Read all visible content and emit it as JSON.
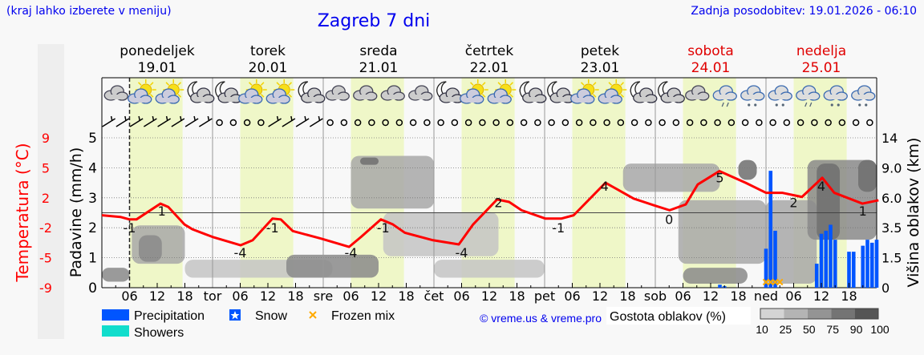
{
  "header": {
    "hint": "(kraj lahko izberete v meniju)",
    "title": "Zagreb 7 dni",
    "updated": "Zadnja posodobitev: 19.01.2026 - 06:10"
  },
  "days": [
    {
      "name": "ponedeljek",
      "date": "19.01",
      "abbr": "",
      "weekend": false
    },
    {
      "name": "torek",
      "date": "20.01",
      "abbr": "tor",
      "weekend": false
    },
    {
      "name": "sreda",
      "date": "21.01",
      "abbr": "sre",
      "weekend": false
    },
    {
      "name": "četrtek",
      "date": "22.01",
      "abbr": "čet",
      "weekend": false
    },
    {
      "name": "petek",
      "date": "23.01",
      "abbr": "pet",
      "weekend": false
    },
    {
      "name": "sobota",
      "date": "24.01",
      "abbr": "sob",
      "weekend": true
    },
    {
      "name": "nedelja",
      "date": "25.01",
      "abbr": "ned",
      "weekend": true
    }
  ],
  "colors": {
    "weekend": "#e00000",
    "temperature": "#ff0000",
    "precipitation": "#0055ff",
    "showers": "#11ddcc",
    "frozen_mix": "#ffaa00",
    "daylight": "#eff7c8",
    "link": "#0000ee"
  },
  "chart_data": {
    "type": "meteogram",
    "x_hour_ticks": [
      "06",
      "12",
      "18"
    ],
    "current_time_hour": 6,
    "left_axis_temperature": {
      "label": "Temperatura (°C)",
      "ticks": [
        "9",
        "5",
        "2",
        "-2",
        "-5",
        "-9"
      ]
    },
    "left_axis_precip": {
      "label": "Padavine (mm/h)",
      "ticks": [
        "0",
        "1",
        "2",
        "3",
        "4",
        "5"
      ],
      "ylim": [
        0,
        5
      ]
    },
    "right_axis_clouds": {
      "label": "Višina oblakov (km)",
      "ticks": [
        "0",
        "1.5",
        "3.5",
        "6.0",
        "9.0",
        "14"
      ]
    },
    "temperature_series": [
      [
        0,
        -0.3
      ],
      [
        4,
        -0.5
      ],
      [
        6,
        -0.8
      ],
      [
        7.5,
        -0.8
      ],
      [
        12.7,
        1.1
      ],
      [
        14.4,
        0.7
      ],
      [
        17.9,
        -1.4
      ],
      [
        19.7,
        -2.0
      ],
      [
        24,
        -2.9
      ],
      [
        30.1,
        -3.9
      ],
      [
        32.7,
        -3.3
      ],
      [
        37,
        -0.7
      ],
      [
        38.8,
        -0.8
      ],
      [
        41.4,
        -2.2
      ],
      [
        47.5,
        -3.1
      ],
      [
        53.6,
        -4.1
      ],
      [
        56.2,
        -2.9
      ],
      [
        60.5,
        -0.8
      ],
      [
        63.1,
        -1.4
      ],
      [
        65.7,
        -2.4
      ],
      [
        71.8,
        -3.3
      ],
      [
        77.4,
        -3.8
      ],
      [
        80.5,
        -1.4
      ],
      [
        85.7,
        1.6
      ],
      [
        88.3,
        1.3
      ],
      [
        91,
        0.3
      ],
      [
        96.2,
        -0.7
      ],
      [
        99.6,
        -0.7
      ],
      [
        102.3,
        -0.3
      ],
      [
        109.2,
        3.6
      ],
      [
        111.8,
        2.8
      ],
      [
        115.3,
        1.7
      ],
      [
        119.7,
        0.9
      ],
      [
        123.1,
        0.3
      ],
      [
        126.6,
        1.0
      ],
      [
        129.2,
        3.4
      ],
      [
        133.9,
        5.0
      ],
      [
        139.6,
        3.6
      ],
      [
        144,
        2.4
      ],
      [
        147.5,
        2.4
      ],
      [
        151.8,
        1.9
      ],
      [
        156.2,
        4.2
      ],
      [
        158.8,
        2.4
      ],
      [
        164.9,
        1.1
      ],
      [
        168.4,
        1.5
      ]
    ],
    "temperature_labels": [
      [
        6,
        "-1"
      ],
      [
        13,
        "1"
      ],
      [
        30,
        "-4"
      ],
      [
        37,
        "-1"
      ],
      [
        54,
        "-4"
      ],
      [
        61,
        "-1"
      ],
      [
        78,
        "-4"
      ],
      [
        86,
        "2"
      ],
      [
        99,
        "-1"
      ],
      [
        109,
        "4"
      ],
      [
        123,
        "0"
      ],
      [
        134,
        "5"
      ],
      [
        150,
        "2"
      ],
      [
        156,
        "4"
      ],
      [
        165,
        "1"
      ]
    ],
    "precipitation_mm_h": [
      [
        134,
        0.1
      ],
      [
        135,
        0.05
      ],
      [
        144,
        1.3
      ],
      [
        145,
        3.9
      ],
      [
        146,
        1.9
      ],
      [
        155,
        0.8
      ],
      [
        156,
        1.8
      ],
      [
        157,
        1.9
      ],
      [
        158,
        2.1
      ],
      [
        159,
        1.6
      ],
      [
        162,
        1.2
      ],
      [
        163,
        1.2
      ],
      [
        165,
        1.4
      ],
      [
        166,
        1.6
      ],
      [
        167,
        1.5
      ],
      [
        168,
        1.6
      ]
    ],
    "frozen_mix_hours": [
      144,
      145,
      146,
      147
    ],
    "cloud_density": [
      {
        "h": [
          0,
          6
        ],
        "km": [
          0.3,
          1.0
        ],
        "d": 75
      },
      {
        "h": [
          6.5,
          18
        ],
        "km": [
          1.2,
          3.7
        ],
        "d": 50
      },
      {
        "h": [
          8,
          13
        ],
        "km": [
          1.3,
          3.0
        ],
        "d": 75
      },
      {
        "h": [
          18,
          50
        ],
        "km": [
          0.5,
          1.4
        ],
        "d": 25
      },
      {
        "h": [
          40,
          60
        ],
        "km": [
          0.5,
          1.7
        ],
        "d": 75
      },
      {
        "h": [
          54,
          72
        ],
        "km": [
          5.1,
          11
        ],
        "d": 50
      },
      {
        "h": [
          56,
          60
        ],
        "km": [
          9.5,
          10.7
        ],
        "d": 90
      },
      {
        "h": [
          61,
          86
        ],
        "km": [
          1.6,
          4.8
        ],
        "d": 25
      },
      {
        "h": [
          72,
          96
        ],
        "km": [
          0.5,
          1.4
        ],
        "d": 25
      },
      {
        "h": [
          113,
          134
        ],
        "km": [
          6.6,
          9.7
        ],
        "d": 50
      },
      {
        "h": [
          125,
          144
        ],
        "km": [
          1.2,
          5.8
        ],
        "d": 50
      },
      {
        "h": [
          126,
          140
        ],
        "km": [
          0.2,
          1.0
        ],
        "d": 75
      },
      {
        "h": [
          138,
          142
        ],
        "km": [
          7.8,
          10.3
        ],
        "d": 90
      },
      {
        "h": [
          144,
          155
        ],
        "km": [
          0.2,
          5.8
        ],
        "d": 50
      },
      {
        "h": [
          153,
          168
        ],
        "km": [
          2.7,
          10.3
        ],
        "d": 75
      },
      {
        "h": [
          155,
          160
        ],
        "km": [
          2.7,
          9.7
        ],
        "d": 90
      },
      {
        "h": [
          164,
          168
        ],
        "km": [
          6.6,
          10.3
        ],
        "d": 90
      }
    ],
    "weather_icons": [
      "cloudy",
      "partly-sunny",
      "partly-sunny",
      "moon-cloud",
      "moon-cloud",
      "partly-sunny",
      "partly-sunny",
      "moon-cloud",
      "cloudy",
      "cloudy",
      "cloudy",
      "cloudy",
      "moon-cloud",
      "partly-sunny",
      "partly-sunny",
      "moon-cloud",
      "moon-cloud",
      "partly-sunny",
      "partly-sunny",
      "moon-cloud",
      "moon-cloud",
      "cloudy",
      "cloudy-rain",
      "cloudy-snow",
      "cloudy-snow",
      "cloudy-rain",
      "cloudy-snow",
      "cloudy-snow"
    ],
    "wind_3h": "bbbbbbbboooobbbboooooooooooooooooooooooooooooooooooooooooooooooobbbbbb"
  },
  "legend": {
    "precipitation": "Precipitation",
    "snow": "Snow",
    "frozen_mix": "Frozen mix",
    "showers": "Showers",
    "credit": "© vreme.us & vreme.pro",
    "cloud_density_label": "Gostota oblakov (%)",
    "cloud_density_steps": [
      "10",
      "25",
      "50",
      "75",
      "90",
      "100"
    ]
  }
}
